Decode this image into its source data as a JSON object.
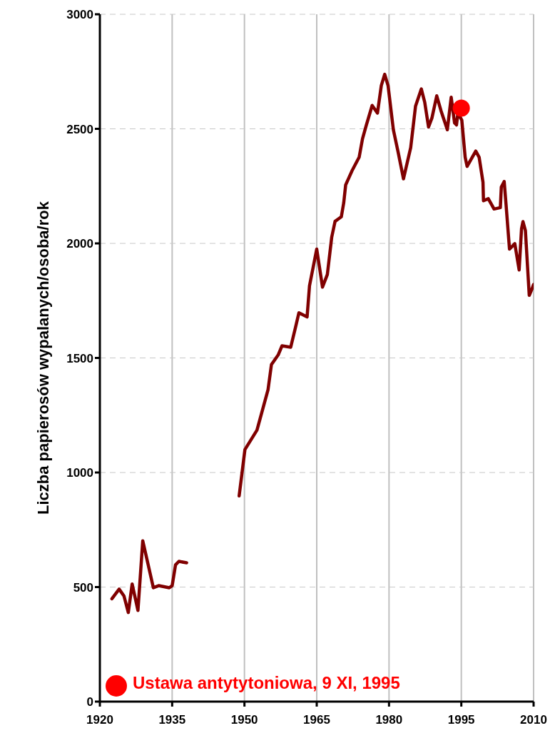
{
  "chart_data": {
    "type": "line",
    "ylabel": "Liczba papierosów wypalanych/osoba/rok",
    "xlim": [
      1920,
      2010
    ],
    "xticks": [
      1920,
      1935,
      1950,
      1965,
      1980,
      1995,
      2010
    ],
    "ylim": [
      0,
      3000
    ],
    "yticks": [
      0,
      500,
      1000,
      1500,
      2000,
      2500,
      3000
    ],
    "grid": true,
    "legend": "bottom left",
    "series": [
      {
        "color": "#800000",
        "marker": "none",
        "x": [
          1922.5,
          1924.0,
          1925.0,
          1925.9,
          1926.7,
          1927.9,
          1928.9,
          1931.1,
          1932.2,
          1934.4,
          1935.0,
          1935.7,
          1936.4,
          1938.0
        ],
        "values": [
          449,
          491,
          461,
          389,
          513,
          398,
          702,
          497,
          506,
          497,
          506,
          597,
          612,
          606
        ]
      },
      {
        "color": "#800000",
        "marker": "none",
        "x": [
          1948.9,
          1950.1,
          1952.6,
          1954.9,
          1955.6,
          1957.0,
          1957.8,
          1959.6,
          1960.6,
          1961.3,
          1963.0,
          1963.5,
          1965.0,
          1966.2,
          1967.2,
          1968.1,
          1968.8,
          1970.1,
          1970.6,
          1971.0,
          1972.3,
          1973.8,
          1974.5,
          1975.3,
          1976.5,
          1977.6,
          1978.4,
          1979.1,
          1979.8,
          1980.9,
          1981.9,
          1983.0,
          1984.5,
          1985.5,
          1986.7,
          1987.4,
          1988.2,
          1988.9,
          1989.9,
          1990.8,
          1992.1,
          1992.9,
          1993.6,
          1994.0,
          1994.3,
          1995.1,
          1995.8,
          1996.2,
          1998.0,
          1998.7,
          1999.5,
          1999.6,
          2000.6,
          2001.8,
          2003.1,
          2003.3,
          2003.9,
          2004.3,
          2005.0,
          2006.1,
          2007.0,
          2007.5,
          2007.8,
          2008.3,
          2009.1,
          2009.7,
          2010.0
        ],
        "values": [
          898,
          1100,
          1185,
          1362,
          1471,
          1513,
          1553,
          1547,
          1634,
          1697,
          1679,
          1815,
          1975,
          1809,
          1864,
          2026,
          2096,
          2116,
          2177,
          2255,
          2316,
          2376,
          2457,
          2517,
          2602,
          2569,
          2689,
          2738,
          2689,
          2496,
          2397,
          2282,
          2418,
          2599,
          2674,
          2617,
          2508,
          2547,
          2644,
          2578,
          2496,
          2638,
          2526,
          2517,
          2569,
          2538,
          2376,
          2336,
          2403,
          2376,
          2267,
          2186,
          2195,
          2150,
          2156,
          2246,
          2270,
          2165,
          1975,
          1999,
          1884,
          2065,
          2095,
          2056,
          1773,
          1803,
          1821
        ]
      },
      {
        "name": "Ustawa antytytoniowa, 9 XI, 1995",
        "type": "scatter",
        "marker": "circle",
        "color": "#ff0000",
        "x": [
          1995
        ],
        "values": [
          2590
        ]
      }
    ]
  }
}
